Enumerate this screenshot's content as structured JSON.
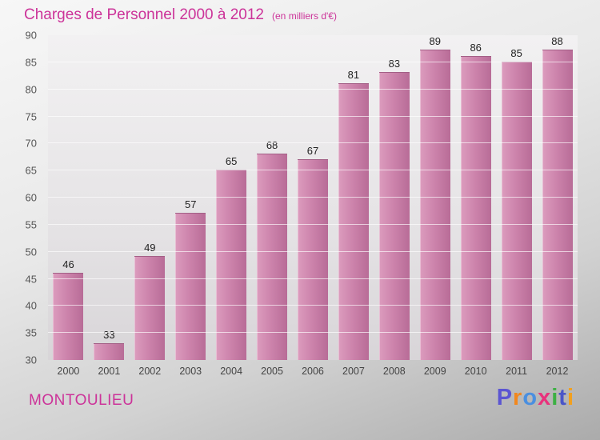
{
  "header": {
    "title": "Charges de Personnel 2000 à 2012",
    "subtitle": "(en milliers d'€)"
  },
  "chart_data": {
    "type": "bar",
    "title": "Charges de Personnel 2000 à 2012",
    "subtitle": "(en milliers d'€)",
    "categories": [
      "2000",
      "2001",
      "2002",
      "2003",
      "2004",
      "2005",
      "2006",
      "2007",
      "2008",
      "2009",
      "2010",
      "2011",
      "2012"
    ],
    "values": [
      46,
      33,
      49,
      57,
      65,
      68,
      67,
      81,
      83,
      89,
      86,
      85,
      88
    ],
    "ylim": [
      30,
      90
    ],
    "yticks": [
      30,
      35,
      40,
      45,
      50,
      55,
      60,
      65,
      70,
      75,
      80,
      85,
      90
    ],
    "grid": true,
    "legend": "none",
    "bar_color": "#cd84ac",
    "value_labels": true
  },
  "footer": {
    "location": "MONTOULIEU",
    "logo": {
      "text": "Proxiti",
      "letters": [
        {
          "ch": "P",
          "color": "#5b55d2"
        },
        {
          "ch": "r",
          "color": "#f2871e"
        },
        {
          "ch": "o",
          "color": "#4a8fe0"
        },
        {
          "ch": "x",
          "color": "#e8327c"
        },
        {
          "ch": "i",
          "color": "#3cb043"
        },
        {
          "ch": "t",
          "color": "#4a55c8"
        },
        {
          "ch": "i",
          "color": "#f2a01e"
        }
      ]
    }
  },
  "colors": {
    "accent": "#cc3399",
    "bar_gradient_start": "#dc9cbe",
    "bar_gradient_end": "#b86c97",
    "plot_bg": "#e9e7e9",
    "page_bg": "#dcdcdc"
  }
}
